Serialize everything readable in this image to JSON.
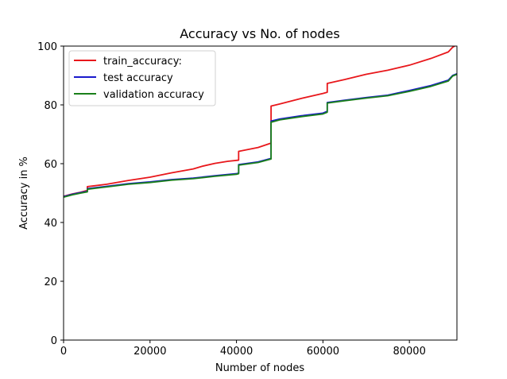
{
  "chart_data": {
    "type": "line",
    "title": "Accuracy vs No. of nodes",
    "xlabel": "Number of nodes",
    "ylabel": "Accuracy in %",
    "xlim": [
      0,
      91000
    ],
    "ylim": [
      0,
      100
    ],
    "xticks": [
      0,
      20000,
      40000,
      60000,
      80000
    ],
    "xtick_labels": [
      "0",
      "20000",
      "40000",
      "60000",
      "80000"
    ],
    "yticks": [
      0,
      20,
      40,
      60,
      80,
      100
    ],
    "ytick_labels": [
      "0",
      "20",
      "40",
      "60",
      "80",
      "100"
    ],
    "grid": false,
    "legend_position": "top-left",
    "series": [
      {
        "name": "train_accuracy:",
        "color": "#e8171b",
        "x": [
          0,
          2000,
          4000,
          5500,
          5500,
          10000,
          15000,
          20000,
          25000,
          30000,
          32000,
          35000,
          38000,
          40500,
          40500,
          45000,
          48000,
          48000,
          50000,
          55000,
          60000,
          61000,
          61000,
          65000,
          70000,
          75000,
          80000,
          85000,
          89000,
          90000,
          90500
        ],
        "y": [
          48.9,
          49.7,
          50.3,
          50.9,
          52.2,
          53.0,
          54.3,
          55.4,
          56.9,
          58.2,
          59.1,
          60.1,
          60.8,
          61.2,
          64.2,
          65.5,
          67.0,
          79.6,
          80.3,
          82.2,
          83.9,
          84.3,
          87.3,
          88.6,
          90.4,
          91.8,
          93.5,
          95.8,
          98.0,
          99.6,
          100.0
        ]
      },
      {
        "name": "test accuracy",
        "color": "#1919cc",
        "x": [
          0,
          2000,
          4000,
          5500,
          5500,
          10000,
          15000,
          20000,
          25000,
          30000,
          35000,
          40000,
          40500,
          40500,
          45000,
          48000,
          48000,
          50000,
          55000,
          60000,
          61000,
          61000,
          65000,
          70000,
          75000,
          80000,
          85000,
          89000,
          90000,
          91000
        ],
        "y": [
          48.8,
          49.6,
          50.2,
          50.6,
          51.5,
          52.3,
          53.2,
          53.8,
          54.6,
          55.1,
          55.9,
          56.6,
          56.8,
          59.7,
          60.6,
          61.8,
          74.5,
          75.2,
          76.3,
          77.2,
          77.8,
          80.8,
          81.6,
          82.5,
          83.3,
          84.9,
          86.6,
          88.4,
          90.0,
          90.6
        ]
      },
      {
        "name": "validation accuracy",
        "color": "#1a801a",
        "x": [
          0,
          2000,
          4000,
          5500,
          5500,
          10000,
          15000,
          20000,
          25000,
          30000,
          35000,
          40000,
          40500,
          40500,
          45000,
          48000,
          48000,
          50000,
          55000,
          60000,
          61000,
          61000,
          65000,
          70000,
          75000,
          80000,
          85000,
          89000,
          90000,
          91000
        ],
        "y": [
          48.6,
          49.4,
          50.0,
          50.4,
          51.3,
          52.1,
          53.0,
          53.6,
          54.4,
          54.9,
          55.7,
          56.4,
          56.6,
          59.5,
          60.4,
          61.6,
          74.1,
          74.9,
          76.0,
          76.9,
          77.5,
          80.6,
          81.4,
          82.3,
          83.1,
          84.6,
          86.3,
          88.1,
          89.8,
          90.4
        ]
      }
    ]
  }
}
